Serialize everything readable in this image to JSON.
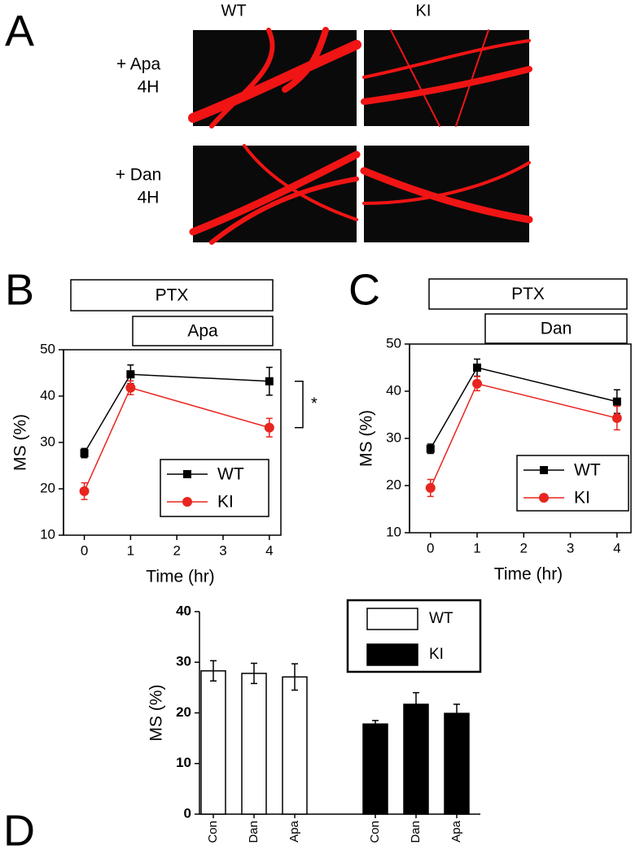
{
  "panel_a": {
    "letter": "A",
    "columns": [
      "WT",
      "KI"
    ],
    "rows": [
      [
        "+ Apa",
        "4H"
      ],
      [
        "+ Dan",
        "4H"
      ]
    ]
  },
  "chart_data": [
    {
      "type": "line",
      "letter": "B",
      "phases": [
        "PTX",
        "Apa"
      ],
      "ylabel": "MS (%)",
      "xlabel": "Time (hr)",
      "x": [
        0,
        1,
        4
      ],
      "xlim": [
        -0.45,
        4.25
      ],
      "xticks": [
        0,
        1,
        2,
        3,
        4
      ],
      "ylim": [
        10,
        50
      ],
      "yticks": [
        10,
        20,
        30,
        40,
        50
      ],
      "legend": "lower right",
      "annotation": "*",
      "series": [
        {
          "name": "WT",
          "color": "#000000",
          "marker": "square",
          "values": [
            27.7,
            44.7,
            43.2
          ],
          "errors": [
            1,
            2,
            3
          ]
        },
        {
          "name": "KI",
          "color": "#e8251f",
          "marker": "circle",
          "values": [
            19.5,
            41.8,
            33.2
          ],
          "errors": [
            1.8,
            1.5,
            2
          ]
        }
      ]
    },
    {
      "type": "line",
      "letter": "C",
      "phases": [
        "PTX",
        "Dan"
      ],
      "ylabel": "MS (%)",
      "xlabel": "Time (hr)",
      "x": [
        0,
        1,
        4
      ],
      "xlim": [
        -0.45,
        4.3
      ],
      "xticks": [
        0,
        1,
        2,
        3,
        4
      ],
      "ylim": [
        10,
        50
      ],
      "yticks": [
        10,
        20,
        30,
        40,
        50
      ],
      "legend": "lower right",
      "series": [
        {
          "name": "WT",
          "color": "#000000",
          "marker": "square",
          "values": [
            27.8,
            45,
            37.8
          ],
          "errors": [
            1,
            1.8,
            2.5
          ]
        },
        {
          "name": "KI",
          "color": "#e8251f",
          "marker": "circle",
          "values": [
            19.5,
            41.6,
            34.3
          ],
          "errors": [
            1.8,
            1.5,
            2.5
          ]
        }
      ]
    },
    {
      "type": "bar",
      "letter": "D",
      "ylabel": "MS (%)",
      "categories": [
        "Con",
        "Dan",
        "Apa"
      ],
      "ylim": [
        0,
        40
      ],
      "yticks": [
        0,
        10,
        20,
        30,
        40
      ],
      "legend": "upper right",
      "series": [
        {
          "name": "WT",
          "color": "#ffffff",
          "values": [
            28.3,
            27.8,
            27.1
          ],
          "errors": [
            2,
            2,
            2.6
          ]
        },
        {
          "name": "KI",
          "color": "#000000",
          "values": [
            17.8,
            21.7,
            19.9
          ],
          "errors": [
            0.7,
            2.3,
            1.8
          ]
        }
      ]
    }
  ]
}
